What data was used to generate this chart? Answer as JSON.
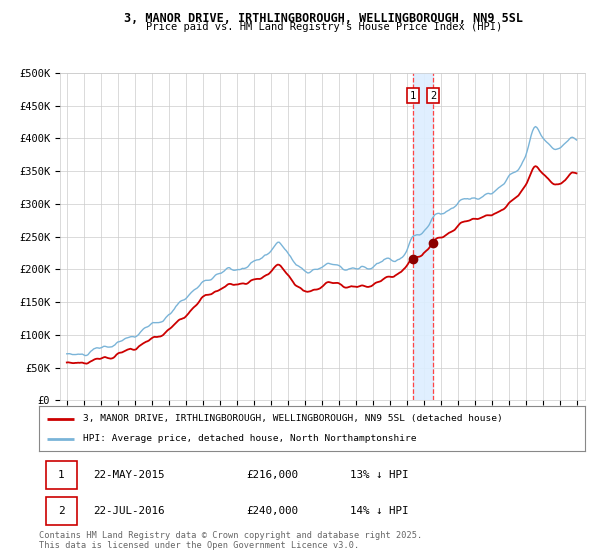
{
  "title1": "3, MANOR DRIVE, IRTHLINGBOROUGH, WELLINGBOROUGH, NN9 5SL",
  "title2": "Price paid vs. HM Land Registry's House Price Index (HPI)",
  "ylabel_ticks": [
    "£0",
    "£50K",
    "£100K",
    "£150K",
    "£200K",
    "£250K",
    "£300K",
    "£350K",
    "£400K",
    "£450K",
    "£500K"
  ],
  "ytick_values": [
    0,
    50000,
    100000,
    150000,
    200000,
    250000,
    300000,
    350000,
    400000,
    450000,
    500000
  ],
  "year_start": 1995,
  "year_end": 2025,
  "hpi_color": "#7ab4d8",
  "price_color": "#cc0000",
  "marker_color": "#8b0000",
  "vline_color": "#ff4444",
  "vband_color": "#ddeeff",
  "transaction1_date": 2015.38,
  "transaction1_price": 216000,
  "transaction2_date": 2016.55,
  "transaction2_price": 240000,
  "legend_label_red": "3, MANOR DRIVE, IRTHLINGBOROUGH, WELLINGBOROUGH, NN9 5SL (detached house)",
  "legend_label_blue": "HPI: Average price, detached house, North Northamptonshire",
  "table_row1": [
    "1",
    "22-MAY-2015",
    "£216,000",
    "13% ↓ HPI"
  ],
  "table_row2": [
    "2",
    "22-JUL-2016",
    "£240,000",
    "14% ↓ HPI"
  ],
  "footnote": "Contains HM Land Registry data © Crown copyright and database right 2025.\nThis data is licensed under the Open Government Licence v3.0.",
  "bg_color": "#ffffff",
  "grid_color": "#cccccc",
  "hpi_keypoints": [
    [
      1995.0,
      67000
    ],
    [
      1996.0,
      72000
    ],
    [
      1997.0,
      80000
    ],
    [
      1998.0,
      88000
    ],
    [
      1999.0,
      100000
    ],
    [
      2000.0,
      115000
    ],
    [
      2001.0,
      130000
    ],
    [
      2002.0,
      158000
    ],
    [
      2003.0,
      178000
    ],
    [
      2004.0,
      195000
    ],
    [
      2005.0,
      200000
    ],
    [
      2006.0,
      210000
    ],
    [
      2007.0,
      230000
    ],
    [
      2007.5,
      238000
    ],
    [
      2008.0,
      225000
    ],
    [
      2008.5,
      210000
    ],
    [
      2009.0,
      195000
    ],
    [
      2009.5,
      198000
    ],
    [
      2010.0,
      205000
    ],
    [
      2011.0,
      205000
    ],
    [
      2012.0,
      200000
    ],
    [
      2013.0,
      205000
    ],
    [
      2014.0,
      215000
    ],
    [
      2015.0,
      228000
    ],
    [
      2015.38,
      248000
    ],
    [
      2016.0,
      258000
    ],
    [
      2016.55,
      278000
    ],
    [
      2017.0,
      285000
    ],
    [
      2018.0,
      300000
    ],
    [
      2019.0,
      310000
    ],
    [
      2020.0,
      315000
    ],
    [
      2021.0,
      340000
    ],
    [
      2022.0,
      375000
    ],
    [
      2022.5,
      415000
    ],
    [
      2023.0,
      400000
    ],
    [
      2023.5,
      390000
    ],
    [
      2024.0,
      385000
    ],
    [
      2024.5,
      395000
    ],
    [
      2025.0,
      400000
    ]
  ],
  "price_keypoints": [
    [
      1995.0,
      55000
    ],
    [
      1996.0,
      58000
    ],
    [
      1997.0,
      63000
    ],
    [
      1998.0,
      70000
    ],
    [
      1999.0,
      80000
    ],
    [
      2000.0,
      93000
    ],
    [
      2001.0,
      108000
    ],
    [
      2002.0,
      130000
    ],
    [
      2003.0,
      155000
    ],
    [
      2004.0,
      170000
    ],
    [
      2005.0,
      178000
    ],
    [
      2006.0,
      182000
    ],
    [
      2007.0,
      198000
    ],
    [
      2007.5,
      205000
    ],
    [
      2008.0,
      192000
    ],
    [
      2008.5,
      178000
    ],
    [
      2009.0,
      165000
    ],
    [
      2009.5,
      168000
    ],
    [
      2010.0,
      175000
    ],
    [
      2011.0,
      178000
    ],
    [
      2012.0,
      172000
    ],
    [
      2013.0,
      178000
    ],
    [
      2014.0,
      188000
    ],
    [
      2015.0,
      205000
    ],
    [
      2015.38,
      216000
    ],
    [
      2016.0,
      225000
    ],
    [
      2016.55,
      240000
    ],
    [
      2017.0,
      248000
    ],
    [
      2018.0,
      265000
    ],
    [
      2019.0,
      278000
    ],
    [
      2020.0,
      282000
    ],
    [
      2021.0,
      300000
    ],
    [
      2022.0,
      330000
    ],
    [
      2022.5,
      355000
    ],
    [
      2023.0,
      345000
    ],
    [
      2023.5,
      335000
    ],
    [
      2024.0,
      330000
    ],
    [
      2024.5,
      340000
    ],
    [
      2025.0,
      348000
    ]
  ]
}
